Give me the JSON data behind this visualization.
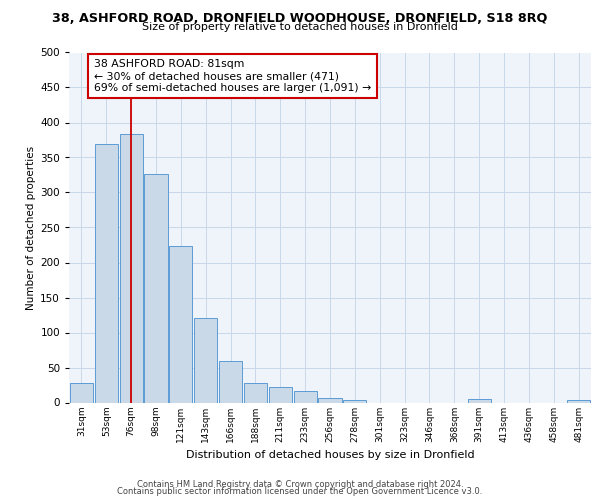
{
  "title_main": "38, ASHFORD ROAD, DRONFIELD WOODHOUSE, DRONFIELD, S18 8RQ",
  "title_sub": "Size of property relative to detached houses in Dronfield",
  "xlabel": "Distribution of detached houses by size in Dronfield",
  "ylabel": "Number of detached properties",
  "bar_labels": [
    "31sqm",
    "53sqm",
    "76sqm",
    "98sqm",
    "121sqm",
    "143sqm",
    "166sqm",
    "188sqm",
    "211sqm",
    "233sqm",
    "256sqm",
    "278sqm",
    "301sqm",
    "323sqm",
    "346sqm",
    "368sqm",
    "391sqm",
    "413sqm",
    "436sqm",
    "458sqm",
    "481sqm"
  ],
  "bar_values": [
    28,
    370,
    383,
    326,
    224,
    121,
    59,
    28,
    22,
    16,
    6,
    4,
    0,
    0,
    0,
    0,
    5,
    0,
    0,
    0,
    4
  ],
  "bar_color": "#c9d9e8",
  "bar_edge_color": "#5b9bd5",
  "vline_x_idx": 2,
  "vline_color": "#cc0000",
  "annotation_line1": "38 ASHFORD ROAD: 81sqm",
  "annotation_line2": "← 30% of detached houses are smaller (471)",
  "annotation_line3": "69% of semi-detached houses are larger (1,091) →",
  "annotation_box_color": "#ffffff",
  "annotation_box_edge": "#cc0000",
  "ylim": [
    0,
    500
  ],
  "yticks": [
    0,
    50,
    100,
    150,
    200,
    250,
    300,
    350,
    400,
    450,
    500
  ],
  "grid_color": "#c8d8e8",
  "background_color": "#eef4fa",
  "footer_line1": "Contains HM Land Registry data © Crown copyright and database right 2024.",
  "footer_line2": "Contains public sector information licensed under the Open Government Licence v3.0."
}
